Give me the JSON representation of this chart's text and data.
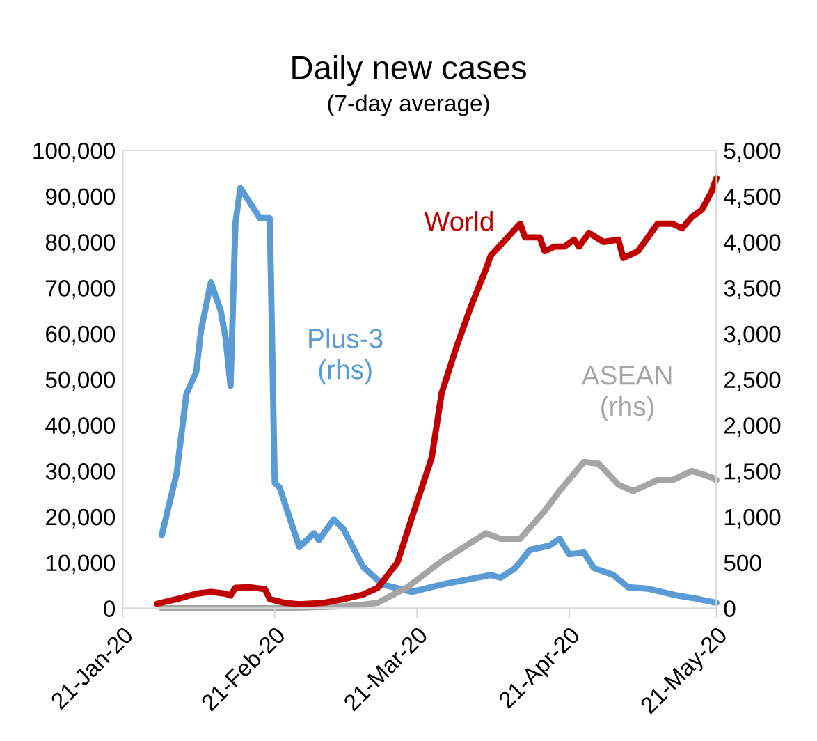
{
  "chart_data": {
    "type": "line",
    "title": "Daily new cases",
    "subtitle": "(7-day average)",
    "xlim": [
      "2020-01-21",
      "2020-05-21"
    ],
    "xticks": [
      {
        "value": "2020-01-21",
        "label": "21-Jan-20"
      },
      {
        "value": "2020-02-21",
        "label": "21-Feb-20"
      },
      {
        "value": "2020-03-21",
        "label": "21-Mar-20"
      },
      {
        "value": "2020-04-21",
        "label": "21-Apr-20"
      },
      {
        "value": "2020-05-21",
        "label": "21-May-20"
      }
    ],
    "ylim": [
      0,
      100000
    ],
    "yticks": [
      0,
      {
        "value": 10000,
        "label": "10,000"
      },
      {
        "value": 20000,
        "label": "20,000"
      },
      {
        "value": 30000,
        "label": "30,000"
      },
      {
        "value": 40000,
        "label": "40,000"
      },
      {
        "value": 50000,
        "label": "50,000"
      },
      {
        "value": 60000,
        "label": "60,000"
      },
      {
        "value": 70000,
        "label": "70,000"
      },
      {
        "value": 80000,
        "label": "80,000"
      },
      {
        "value": 90000,
        "label": "90,000"
      },
      {
        "value": 100000,
        "label": "100,000"
      }
    ],
    "y2lim": [
      0,
      5000
    ],
    "y2ticks": [
      0,
      500,
      {
        "value": 1000,
        "label": "1,000"
      },
      {
        "value": 1500,
        "label": "1,500"
      },
      {
        "value": 2000,
        "label": "2,000"
      },
      {
        "value": 2500,
        "label": "2,500"
      },
      {
        "value": 3000,
        "label": "3,000"
      },
      {
        "value": 3500,
        "label": "3,500"
      },
      {
        "value": 4000,
        "label": "4,000"
      },
      {
        "value": 4500,
        "label": "4,500"
      },
      {
        "value": 5000,
        "label": "5,000"
      }
    ],
    "grid": false,
    "legend": false,
    "marker": "none",
    "line_style": "solid",
    "series": [
      {
        "name": "World",
        "color": "#c00000",
        "x": [
          "2020-01-28",
          "2020-02-01",
          "2020-02-05",
          "2020-02-08",
          "2020-02-11",
          "2020-02-12",
          "2020-02-13",
          "2020-02-16",
          "2020-02-19",
          "2020-02-20",
          "2020-02-23",
          "2020-02-26",
          "2020-03-02",
          "2020-03-06",
          "2020-03-10",
          "2020-03-13",
          "2020-03-17",
          "2020-03-20",
          "2020-03-24",
          "2020-03-26",
          "2020-03-29",
          "2020-04-01",
          "2020-04-04",
          "2020-04-05",
          "2020-04-08",
          "2020-04-11",
          "2020-04-12",
          "2020-04-15",
          "2020-04-16",
          "2020-04-18",
          "2020-04-20",
          "2020-04-22",
          "2020-04-23",
          "2020-04-25",
          "2020-04-28",
          "2020-05-01",
          "2020-05-02",
          "2020-05-05",
          "2020-05-07",
          "2020-05-09",
          "2020-05-12",
          "2020-05-14",
          "2020-05-16",
          "2020-05-18",
          "2020-05-20",
          "2020-05-21"
        ],
        "values": [
          1000,
          2000,
          3200,
          3600,
          3200,
          2800,
          4500,
          4600,
          4200,
          2000,
          1200,
          900,
          1200,
          2000,
          3000,
          4500,
          10000,
          20000,
          33000,
          47000,
          57000,
          66000,
          74000,
          77000,
          80500,
          84000,
          81000,
          81000,
          78000,
          79000,
          79000,
          80500,
          79000,
          82000,
          80000,
          80500,
          76500,
          78000,
          81000,
          84000,
          84000,
          83000,
          85500,
          87000,
          91000,
          94000
        ]
      },
      {
        "name": "Plus-3\n(rhs)",
        "color": "#5b9bd5",
        "axis": "y2",
        "x": [
          "2020-01-29",
          "2020-02-01",
          "2020-02-03",
          "2020-02-05",
          "2020-02-06",
          "2020-02-08",
          "2020-02-10",
          "2020-02-11",
          "2020-02-12",
          "2020-02-13",
          "2020-02-14",
          "2020-02-18",
          "2020-02-20",
          "2020-02-21",
          "2020-02-22",
          "2020-02-26",
          "2020-02-29",
          "2020-03-01",
          "2020-03-04",
          "2020-03-06",
          "2020-03-10",
          "2020-03-14",
          "2020-03-20",
          "2020-03-26",
          "2020-04-05",
          "2020-04-07",
          "2020-04-10",
          "2020-04-13",
          "2020-04-17",
          "2020-04-19",
          "2020-04-21",
          "2020-04-24",
          "2020-04-26",
          "2020-04-30",
          "2020-05-03",
          "2020-05-07",
          "2020-05-13",
          "2020-05-17",
          "2020-05-21"
        ],
        "values": [
          800,
          1470,
          2340,
          2580,
          3040,
          3560,
          3250,
          2950,
          2430,
          4210,
          4590,
          4260,
          4260,
          1370,
          1320,
          670,
          820,
          745,
          970,
          865,
          455,
          260,
          180,
          260,
          365,
          335,
          440,
          640,
          685,
          760,
          590,
          610,
          440,
          365,
          230,
          215,
          140,
          105,
          60
        ]
      },
      {
        "name": "ASEAN\n(rhs)",
        "color": "#a5a5a5",
        "axis": "y2",
        "x": [
          "2020-01-29",
          "2020-02-21",
          "2020-03-05",
          "2020-03-10",
          "2020-03-13",
          "2020-03-19",
          "2020-03-26",
          "2020-04-04",
          "2020-04-07",
          "2020-04-11",
          "2020-04-16",
          "2020-04-19",
          "2020-04-24",
          "2020-04-27",
          "2020-05-01",
          "2020-05-04",
          "2020-05-09",
          "2020-05-12",
          "2020-05-16",
          "2020-05-20",
          "2020-05-21"
        ],
        "values": [
          0,
          0,
          20,
          40,
          60,
          230,
          515,
          820,
          760,
          760,
          1065,
          1280,
          1600,
          1580,
          1350,
          1280,
          1400,
          1400,
          1500,
          1430,
          1400
        ]
      }
    ]
  }
}
